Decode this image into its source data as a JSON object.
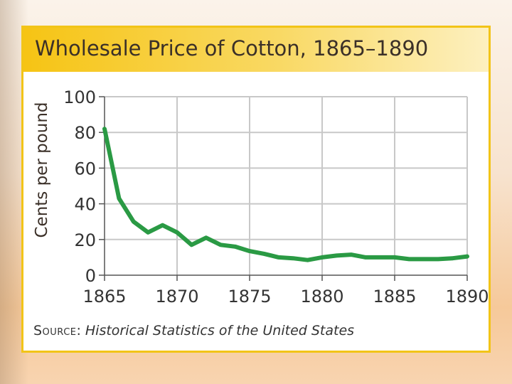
{
  "title": "Wholesale Price of Cotton, 1865–1890",
  "source": {
    "label": "Source",
    "separator": ":",
    "title": "Historical Statistics of the United States"
  },
  "colors": {
    "line": "#2a9a44",
    "grid": "#c8c8c8",
    "border": "#f2c418",
    "title_bar": "#f6c414"
  },
  "chart_data": {
    "type": "line",
    "title": "Wholesale Price of Cotton, 1865–1890",
    "xlabel": "",
    "ylabel": "Cents per pound",
    "xlim": [
      1865,
      1890
    ],
    "ylim": [
      0,
      100
    ],
    "x_ticks": [
      1865,
      1870,
      1875,
      1880,
      1885,
      1890
    ],
    "y_ticks": [
      0,
      20,
      40,
      60,
      80,
      100
    ],
    "grid": true,
    "series": [
      {
        "x": [
          1865,
          1866,
          1867,
          1868,
          1869,
          1870,
          1871,
          1872,
          1873,
          1874,
          1875,
          1876,
          1877,
          1878,
          1879,
          1880,
          1881,
          1882,
          1883,
          1884,
          1885,
          1886,
          1887,
          1888,
          1889,
          1890
        ],
        "values": [
          82,
          43,
          30,
          24,
          28,
          24,
          17,
          21,
          17,
          16,
          13.5,
          12,
          10,
          9.5,
          8.5,
          10,
          11,
          11.5,
          10,
          10,
          10,
          9,
          9,
          9,
          9.5,
          10.5
        ]
      }
    ]
  }
}
